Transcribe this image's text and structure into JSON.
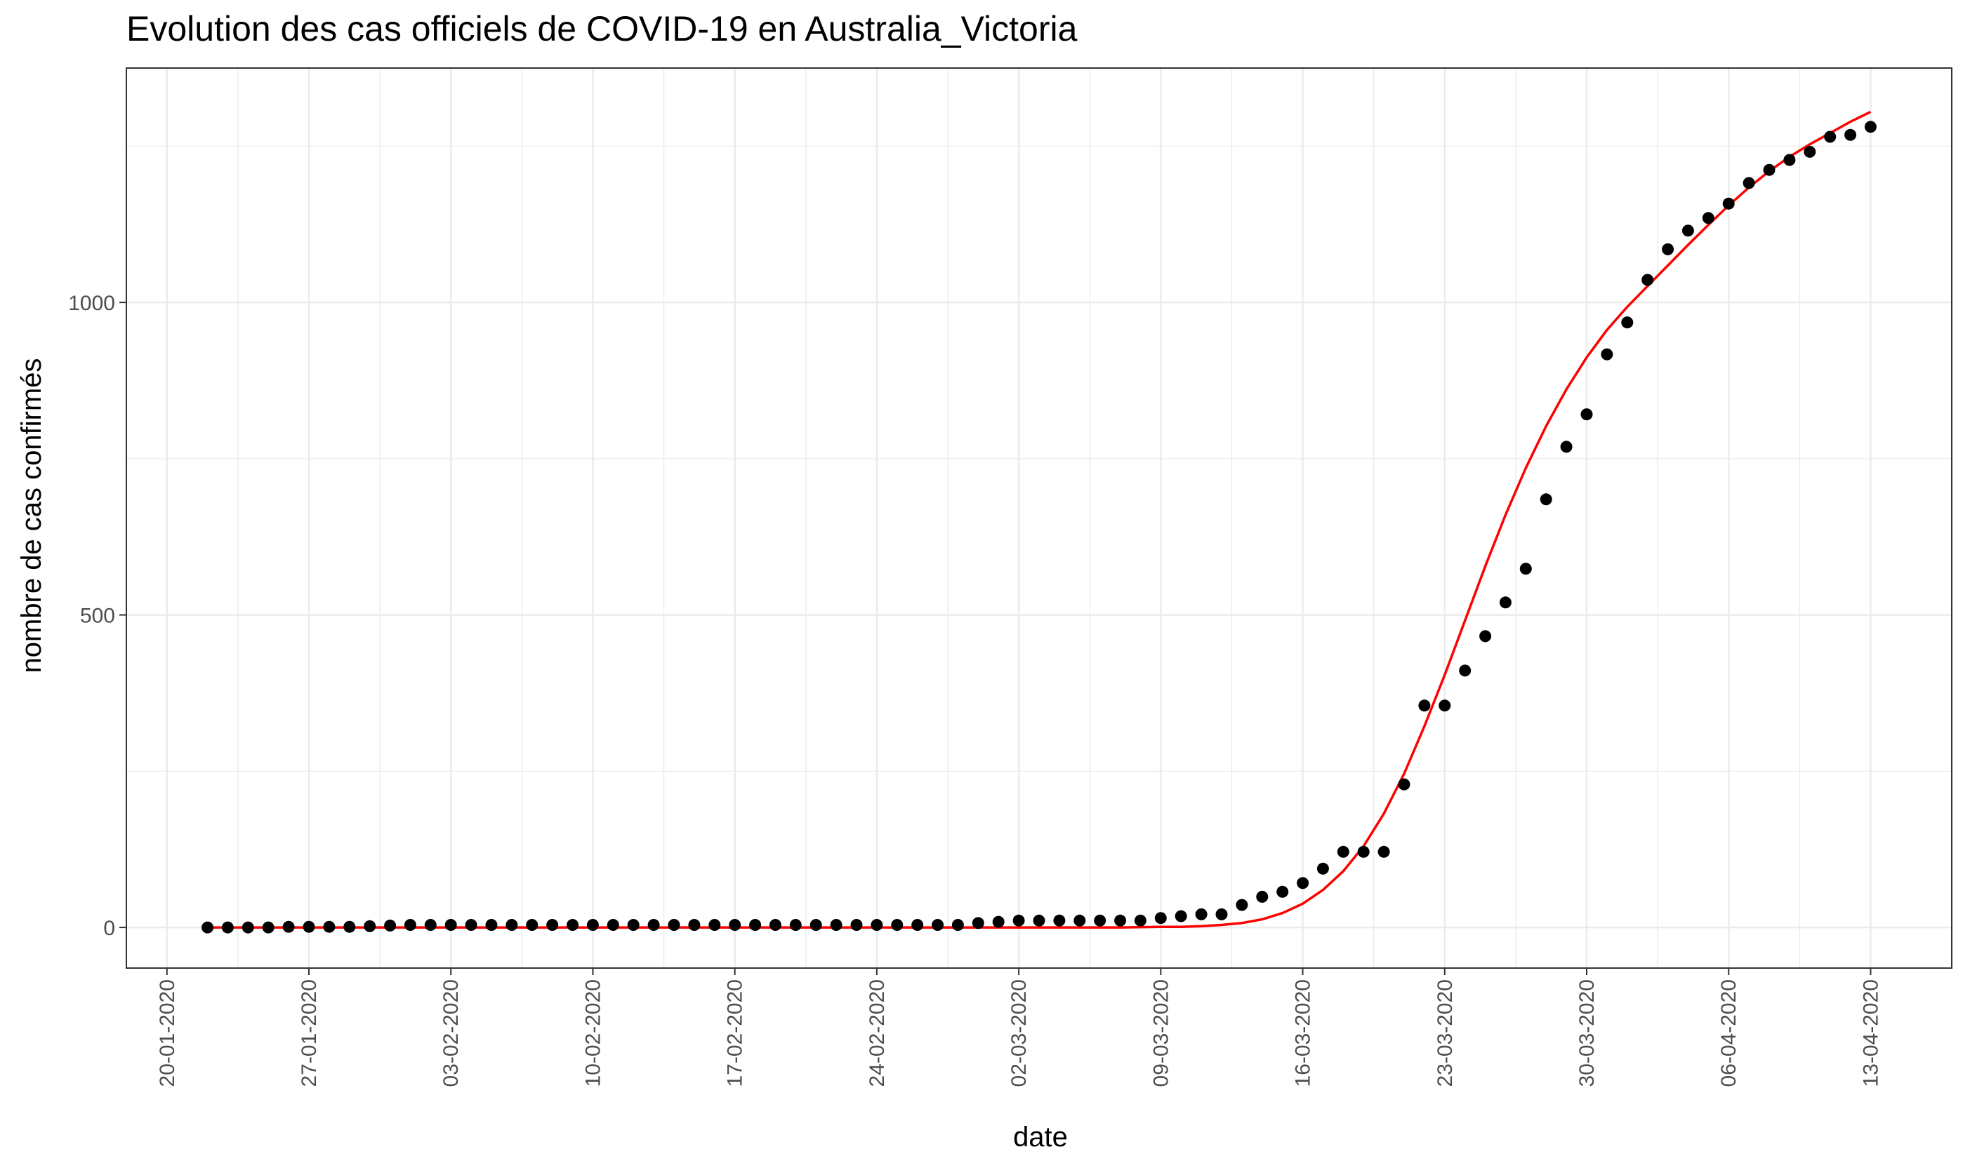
{
  "chart_data": {
    "type": "scatter",
    "title": "Evolution des cas officiels de COVID-19 en Australia_Victoria",
    "xlabel": "date",
    "ylabel": "nombre de cas confirmés",
    "x_tick_labels": [
      "20-01-2020",
      "27-01-2020",
      "03-02-2020",
      "10-02-2020",
      "17-02-2020",
      "24-02-2020",
      "02-03-2020",
      "09-03-2020",
      "16-03-2020",
      "23-03-2020",
      "30-03-2020",
      "06-04-2020",
      "13-04-2020"
    ],
    "y_tick_labels": [
      "0",
      "500",
      "1000"
    ],
    "y_ticks": [
      0,
      500,
      1000
    ],
    "ylim": [
      -65,
      1375
    ],
    "xlim": [
      "2020-01-18",
      "2020-04-17"
    ],
    "grid": true,
    "colors": {
      "points": "#000000",
      "fit_line": "#ff0000",
      "panel_border": "#333333",
      "grid": "#ebebeb"
    },
    "series": [
      {
        "kind": "points",
        "dates": [
          "2020-01-22",
          "2020-01-23",
          "2020-01-24",
          "2020-01-25",
          "2020-01-26",
          "2020-01-27",
          "2020-01-28",
          "2020-01-29",
          "2020-01-30",
          "2020-01-31",
          "2020-02-01",
          "2020-02-02",
          "2020-02-03",
          "2020-02-04",
          "2020-02-05",
          "2020-02-06",
          "2020-02-07",
          "2020-02-08",
          "2020-02-09",
          "2020-02-10",
          "2020-02-11",
          "2020-02-12",
          "2020-02-13",
          "2020-02-14",
          "2020-02-15",
          "2020-02-16",
          "2020-02-17",
          "2020-02-18",
          "2020-02-19",
          "2020-02-20",
          "2020-02-21",
          "2020-02-22",
          "2020-02-23",
          "2020-02-24",
          "2020-02-25",
          "2020-02-26",
          "2020-02-27",
          "2020-02-28",
          "2020-02-29",
          "2020-03-01",
          "2020-03-02",
          "2020-03-03",
          "2020-03-04",
          "2020-03-05",
          "2020-03-06",
          "2020-03-07",
          "2020-03-08",
          "2020-03-09",
          "2020-03-10",
          "2020-03-11",
          "2020-03-12",
          "2020-03-13",
          "2020-03-14",
          "2020-03-15",
          "2020-03-16",
          "2020-03-17",
          "2020-03-18",
          "2020-03-19",
          "2020-03-20",
          "2020-03-21",
          "2020-03-22",
          "2020-03-23",
          "2020-03-24",
          "2020-03-25",
          "2020-03-26",
          "2020-03-27",
          "2020-03-28",
          "2020-03-29",
          "2020-03-30",
          "2020-03-31",
          "2020-04-01",
          "2020-04-02",
          "2020-04-03",
          "2020-04-04",
          "2020-04-05",
          "2020-04-06",
          "2020-04-07",
          "2020-04-08",
          "2020-04-09",
          "2020-04-10",
          "2020-04-11",
          "2020-04-12",
          "2020-04-13"
        ],
        "values": [
          0,
          0,
          0,
          0,
          1,
          1,
          1,
          1,
          2,
          3,
          4,
          4,
          4,
          4,
          4,
          4,
          4,
          4,
          4,
          4,
          4,
          4,
          4,
          4,
          4,
          4,
          4,
          4,
          4,
          4,
          4,
          4,
          4,
          4,
          4,
          4,
          4,
          4,
          7,
          9,
          11,
          11,
          11,
          11,
          11,
          11,
          11,
          15,
          18,
          21,
          21,
          36,
          49,
          57,
          71,
          94,
          121,
          121,
          121,
          229,
          355,
          355,
          411,
          466,
          520,
          574,
          685,
          769,
          821,
          917,
          968,
          1036,
          1085,
          1115,
          1135,
          1158,
          1191,
          1212,
          1228,
          1241,
          1265,
          1268,
          1281
        ]
      },
      {
        "kind": "fitted-line",
        "dates": [
          "2020-01-22",
          "2020-02-01",
          "2020-02-11",
          "2020-02-21",
          "2020-03-01",
          "2020-03-05",
          "2020-03-07",
          "2020-03-09",
          "2020-03-10",
          "2020-03-11",
          "2020-03-12",
          "2020-03-13",
          "2020-03-14",
          "2020-03-15",
          "2020-03-16",
          "2020-03-17",
          "2020-03-18",
          "2020-03-19",
          "2020-03-20",
          "2020-03-21",
          "2020-03-22",
          "2020-03-23",
          "2020-03-24",
          "2020-03-25",
          "2020-03-26",
          "2020-03-27",
          "2020-03-28",
          "2020-03-29",
          "2020-03-30",
          "2020-03-31",
          "2020-04-01",
          "2020-04-02",
          "2020-04-03",
          "2020-04-04",
          "2020-04-05",
          "2020-04-06",
          "2020-04-07",
          "2020-04-08",
          "2020-04-09",
          "2020-04-10",
          "2020-04-11",
          "2020-04-12",
          "2020-04-13"
        ],
        "values": [
          0,
          0,
          0,
          0,
          0,
          0,
          0,
          1,
          1,
          2,
          4,
          7,
          13,
          23,
          38,
          60,
          90,
          130,
          182,
          246,
          322,
          404,
          491,
          578,
          660,
          735,
          802,
          861,
          912,
          956,
          993,
          1026,
          1059,
          1092,
          1124,
          1155,
          1184,
          1210,
          1233,
          1253,
          1271,
          1289,
          1305
        ]
      }
    ]
  }
}
